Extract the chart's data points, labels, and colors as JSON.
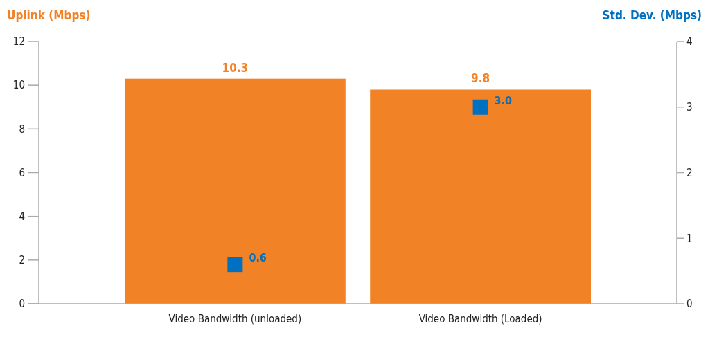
{
  "chart_data": {
    "type": "bar",
    "ylabel": "Uplink (Mbps)",
    "y2label": "Std. Dev. (Mbps)",
    "categories": [
      "Video Bandwidth (unloaded)",
      "Video Bandwidth (Loaded)"
    ],
    "series": [
      {
        "color": "#f28226",
        "values": [
          10.3,
          9.8
        ],
        "value_labels": [
          "10.3",
          "9.8"
        ]
      },
      {
        "type": "scatter",
        "axis": "y2",
        "color": "#0070c0",
        "values": [
          0.6,
          3.0
        ],
        "value_labels": [
          "0.6",
          "3.0"
        ]
      }
    ],
    "ylim": [
      0,
      12
    ],
    "yticks": [
      0,
      2,
      4,
      6,
      8,
      10,
      12
    ],
    "y2lim": [
      0,
      4
    ],
    "y2ticks": [
      0,
      1,
      2,
      3,
      4
    ],
    "marker": "square",
    "grid": false
  }
}
